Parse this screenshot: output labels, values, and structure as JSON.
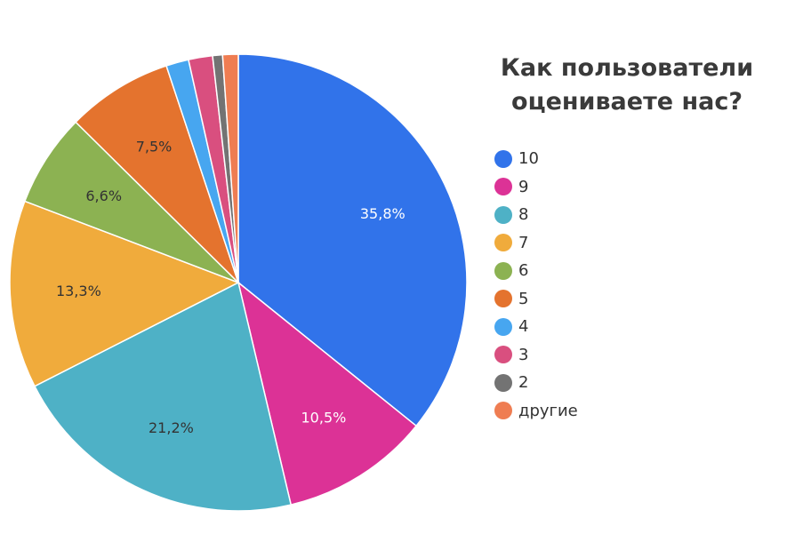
{
  "chart_data": {
    "type": "pie",
    "title_lines": [
      "Как пользователи",
      "оцениваете нас?"
    ],
    "categories": [
      "10",
      "9",
      "8",
      "7",
      "6",
      "5",
      "4",
      "3",
      "2",
      "другие"
    ],
    "values": [
      35.8,
      10.5,
      21.2,
      13.3,
      6.6,
      7.5,
      1.6,
      1.7,
      0.7,
      1.1
    ],
    "data_labels": [
      "35,8%",
      "10,5%",
      "21,2%",
      "13,3%",
      "6,6%",
      "7,5%",
      "",
      "",
      "",
      ""
    ],
    "colors": [
      "#3173ea",
      "#dc3296",
      "#4eb1c6",
      "#f0ab3c",
      "#8cb252",
      "#e4732e",
      "#47a6f0",
      "#d94f7f",
      "#737373",
      "#ef7d52"
    ],
    "label_colors": [
      "#ffffff",
      "#ffffff",
      "#333333",
      "#333333",
      "#333333",
      "#333333",
      "#333333",
      "#333333",
      "#333333",
      "#333333"
    ],
    "legend_position": "right"
  }
}
